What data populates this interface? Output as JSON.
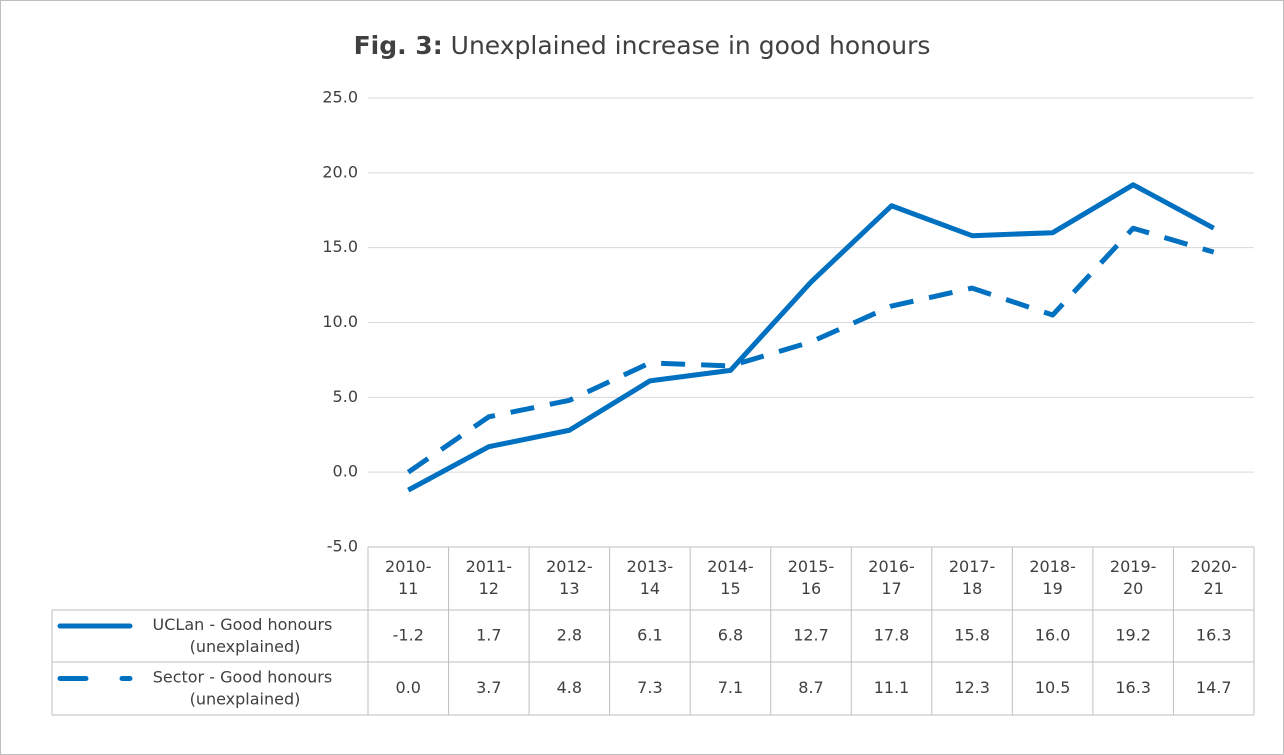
{
  "chart_data": {
    "type": "line",
    "title": {
      "bold": "Fig. 3:",
      "text": "Unexplained increase in good honours"
    },
    "categories": [
      "2010-11",
      "2011-12",
      "2012-13",
      "2013-14",
      "2014-15",
      "2015-16",
      "2016-17",
      "2017-18",
      "2018-19",
      "2019-20",
      "2020-21"
    ],
    "series": [
      {
        "name": "UCLan - Good honours (unexplained)",
        "color": "#0070c0",
        "dash": false,
        "values": [
          -1.2,
          1.7,
          2.8,
          6.1,
          6.8,
          12.7,
          17.8,
          15.8,
          16.0,
          19.2,
          16.3
        ],
        "value_labels": [
          "-1.2",
          "1.7",
          "2.8",
          "6.1",
          "6.8",
          "12.7",
          "17.8",
          "15.8",
          "16.0",
          "19.2",
          "16.3"
        ]
      },
      {
        "name": "Sector - Good honours (unexplained)",
        "color": "#0070c0",
        "dash": true,
        "values": [
          0.0,
          3.7,
          4.8,
          7.3,
          7.1,
          8.7,
          11.1,
          12.3,
          10.5,
          16.3,
          14.7
        ],
        "value_labels": [
          "0.0",
          "3.7",
          "4.8",
          "7.3",
          "7.1",
          "8.7",
          "11.1",
          "12.3",
          "10.5",
          "16.3",
          "14.7"
        ]
      }
    ],
    "ylim": [
      -5,
      25
    ],
    "yticks": [
      {
        "value": -5,
        "label": "-5.0"
      },
      {
        "value": 0,
        "label": "0.0"
      },
      {
        "value": 5,
        "label": "5.0"
      },
      {
        "value": 10,
        "label": "10.0"
      },
      {
        "value": 15,
        "label": "15.0"
      },
      {
        "value": 20,
        "label": "20.0"
      },
      {
        "value": 25,
        "label": "25.0"
      }
    ],
    "grid": true
  }
}
